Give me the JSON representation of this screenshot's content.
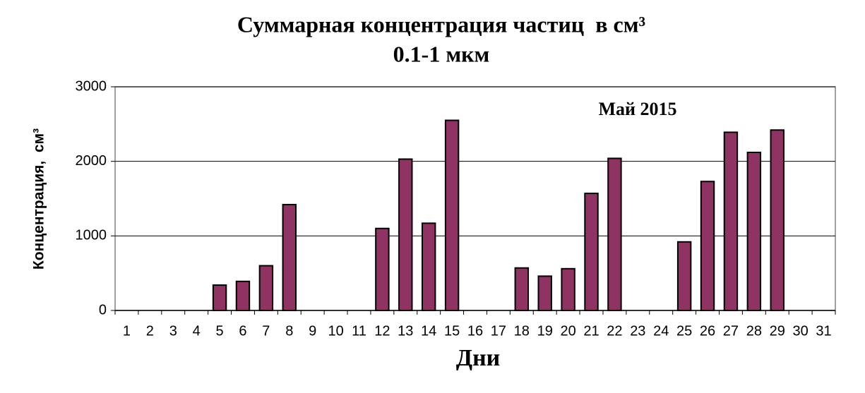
{
  "chart_data": {
    "type": "bar",
    "title": "Суммарная концентрация частиц  в см³",
    "subtitle": "0.1-1 мкм",
    "annotation": "Май 2015",
    "x_label": "Дни",
    "y_label": "Концентрация,  см³",
    "categories": [
      "1",
      "2",
      "3",
      "4",
      "5",
      "6",
      "7",
      "8",
      "9",
      "10",
      "11",
      "12",
      "13",
      "14",
      "15",
      "16",
      "17",
      "18",
      "19",
      "20",
      "21",
      "22",
      "23",
      "24",
      "25",
      "26",
      "27",
      "28",
      "29",
      "30",
      "31"
    ],
    "values": [
      null,
      null,
      null,
      null,
      340,
      390,
      600,
      1420,
      null,
      null,
      null,
      1100,
      2030,
      1170,
      2550,
      null,
      null,
      570,
      460,
      560,
      1570,
      2040,
      null,
      null,
      920,
      1730,
      2390,
      2120,
      2420,
      null,
      null
    ],
    "color": "#8e3362",
    "ylim": [
      0,
      3000
    ],
    "yticks": [
      0,
      1000,
      2000,
      3000
    ],
    "grid": true
  }
}
